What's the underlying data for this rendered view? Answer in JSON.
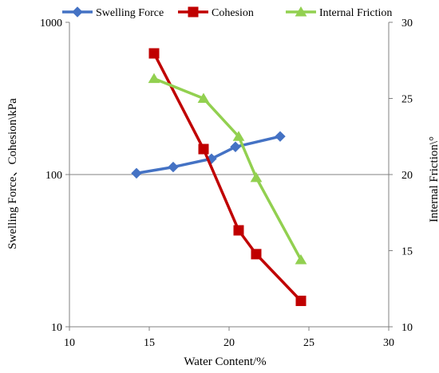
{
  "chart_data": {
    "type": "line",
    "title": "",
    "xlabel": "Water Content/%",
    "ylabel": "Swelling Force、Cohesion\\kPa",
    "y2label": "Internal Friction\\°",
    "xlim": [
      10,
      30
    ],
    "ylim": [
      10,
      1000
    ],
    "yscale": "log",
    "y2lim": [
      10,
      30
    ],
    "xticks": [
      "10",
      "15",
      "20",
      "25",
      "30"
    ],
    "yticks": [
      "10",
      "100",
      "1000"
    ],
    "y2ticks": [
      "10",
      "15",
      "20",
      "25",
      "30"
    ],
    "grid": "horizontal line at 100 only",
    "legend_position": "top",
    "series": [
      {
        "name": "Swelling Force",
        "axis": "left",
        "color": "#4472C4",
        "marker": "diamond",
        "x": [
          14.2,
          16.5,
          18.9,
          20.4,
          23.2
        ],
        "y": [
          102,
          112,
          127,
          152,
          178
        ]
      },
      {
        "name": "Cohesion",
        "axis": "left",
        "color": "#C00000",
        "marker": "square",
        "x": [
          15.3,
          18.4,
          20.6,
          21.7,
          24.5
        ],
        "y": [
          625,
          147,
          43,
          30,
          14.8
        ]
      },
      {
        "name": "Internal Friction",
        "axis": "right",
        "color": "#92D050",
        "marker": "triangle",
        "x": [
          15.3,
          18.4,
          20.6,
          21.7,
          24.5
        ],
        "y": [
          26.3,
          25.0,
          22.5,
          19.8,
          14.4
        ]
      }
    ]
  }
}
